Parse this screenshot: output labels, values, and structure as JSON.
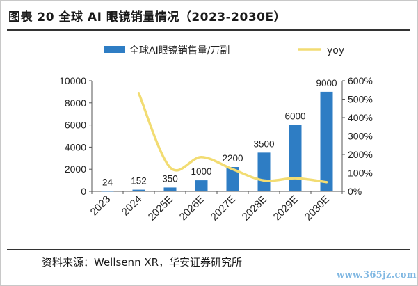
{
  "title": "图表 20 全球 AI 眼镜销量情况（2023-2030E）",
  "source": "资料来源：Wellsenn XR，华安证券研究所",
  "watermark": "www.365jz.com",
  "colors": {
    "bar": "#2e7dc4",
    "line": "#f2dc72",
    "axis": "#555555"
  },
  "chart_data": {
    "type": "bar",
    "categories": [
      "2023",
      "2024",
      "2025E",
      "2026E",
      "2027E",
      "2028E",
      "2029E",
      "2030E"
    ],
    "series": [
      {
        "name": "全球AI眼镜销售量/万副",
        "type": "bar",
        "axis": "left",
        "values": [
          24,
          152,
          350,
          1000,
          2200,
          3500,
          6000,
          9000
        ]
      },
      {
        "name": "yoy",
        "type": "line",
        "axis": "right",
        "values": [
          null,
          533,
          130,
          186,
          120,
          59,
          71,
          50
        ]
      }
    ],
    "y_left": {
      "min": 0,
      "max": 10000,
      "ticks": [
        0,
        2000,
        4000,
        6000,
        8000,
        10000
      ]
    },
    "y_right": {
      "min": 0,
      "max": 600,
      "ticks": [
        0,
        100,
        200,
        300,
        400,
        500,
        600
      ],
      "tick_suffix": "%"
    },
    "data_labels": [
      "24",
      "152",
      "350",
      "1000",
      "2200",
      "3500",
      "6000",
      "9000"
    ],
    "legend_position": "top",
    "grid": false
  }
}
